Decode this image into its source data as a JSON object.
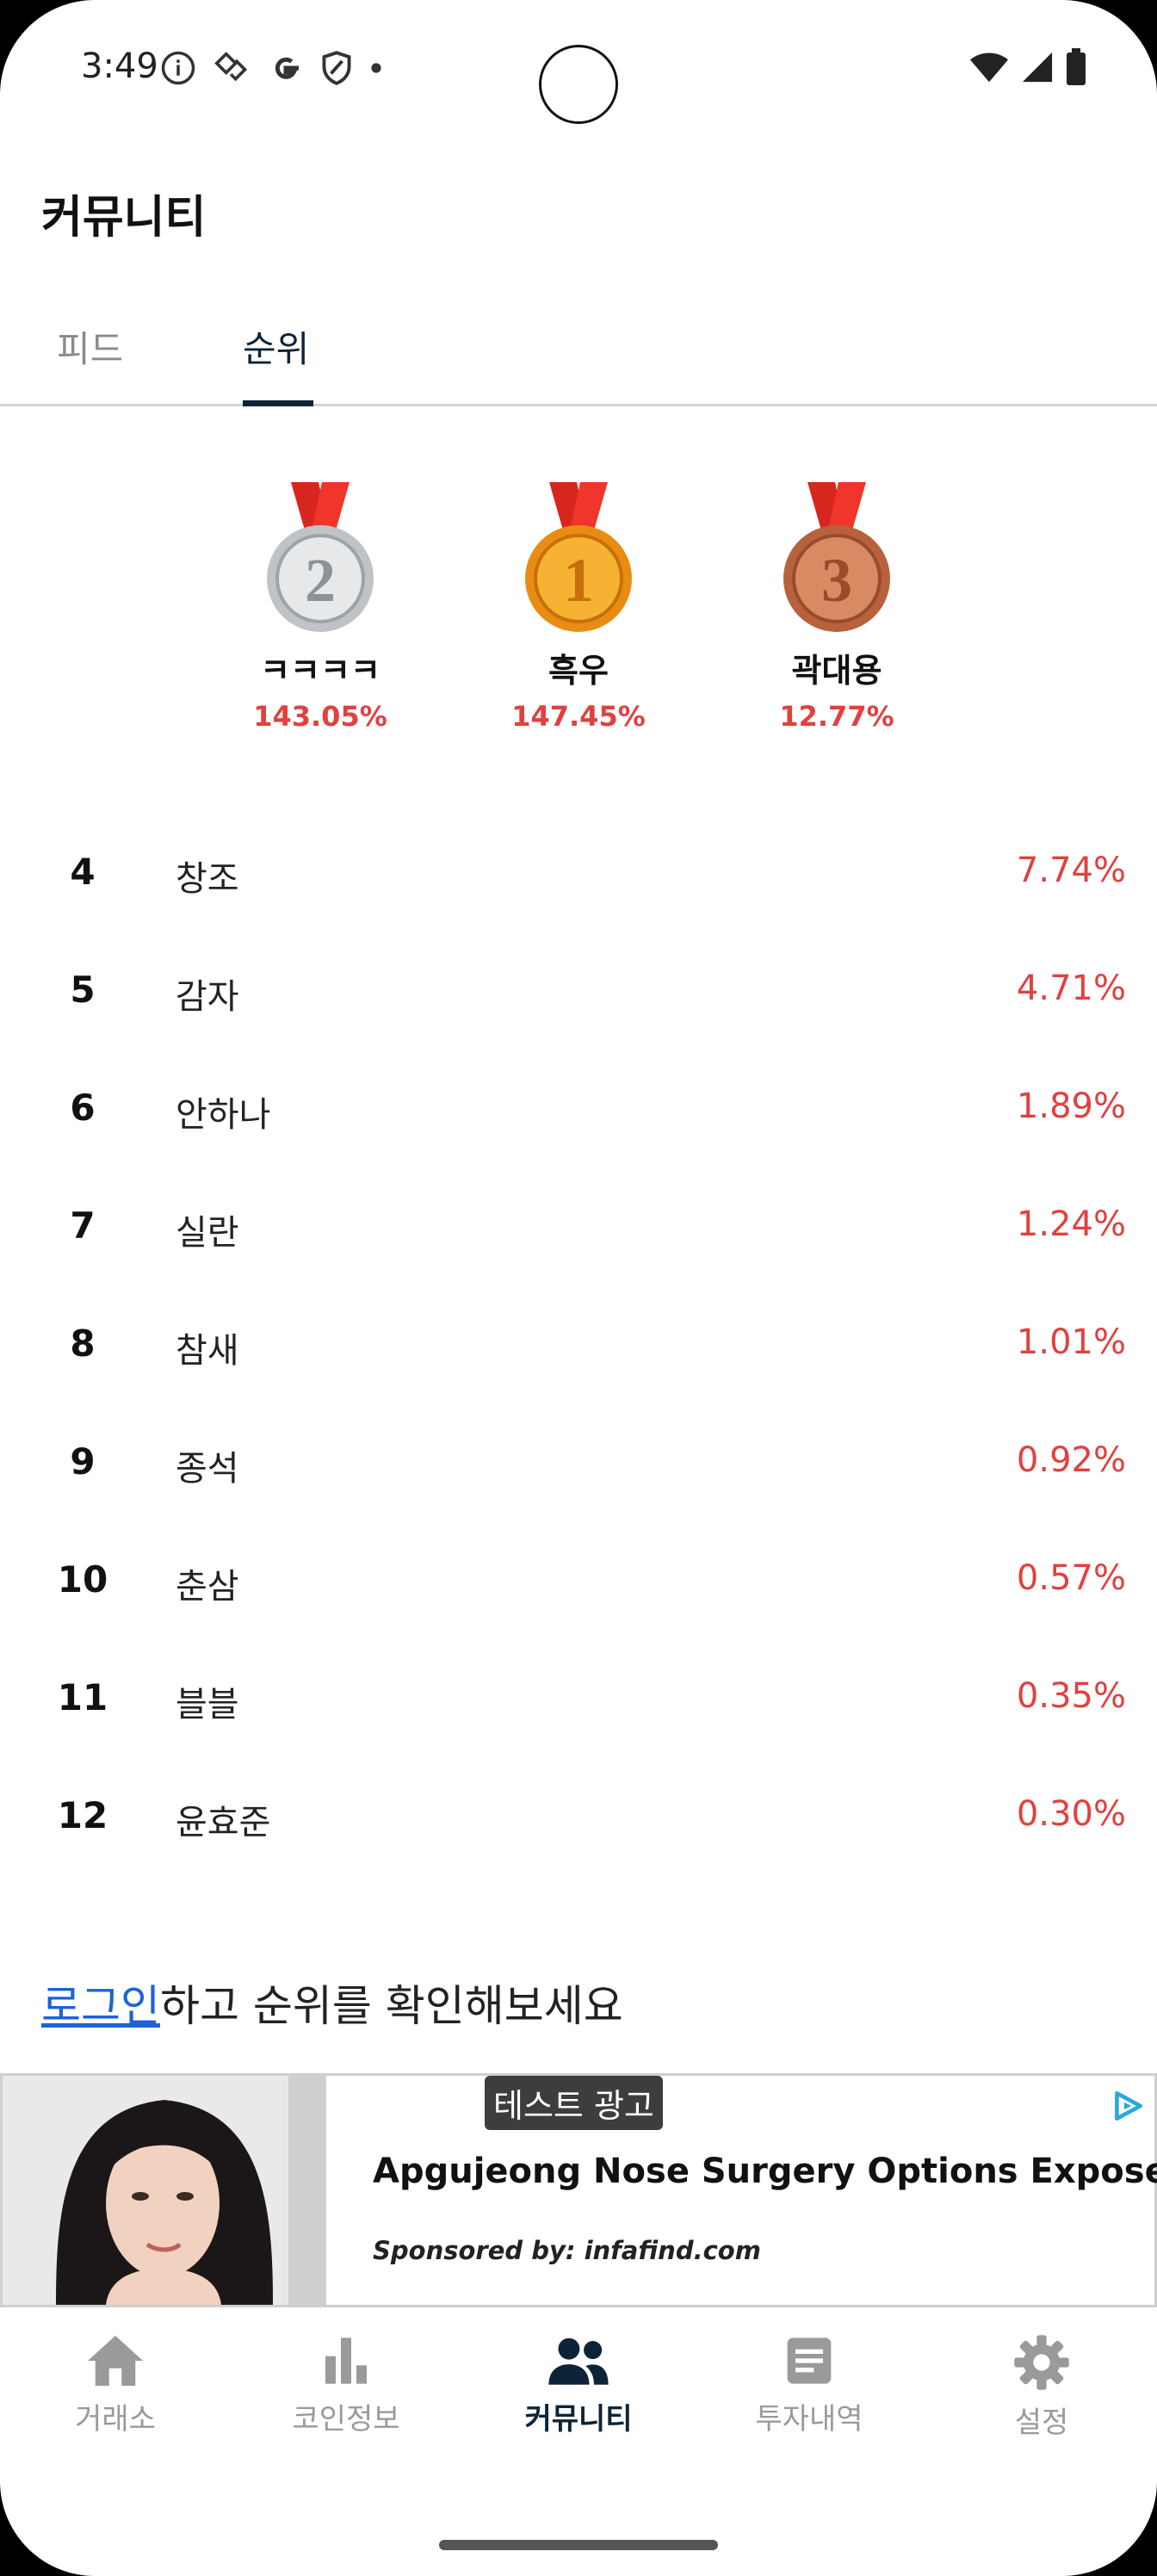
{
  "status_bar": {
    "time": "3:49",
    "left_icons": [
      "info-icon",
      "diamond-icon",
      "google-icon",
      "shield-icon",
      "dot-icon"
    ],
    "right_icons": [
      "wifi-icon",
      "signal-icon",
      "battery-icon"
    ]
  },
  "header": {
    "title": "커뮤니티"
  },
  "tabs": [
    {
      "label": "피드",
      "active": false
    },
    {
      "label": "순위",
      "active": true
    }
  ],
  "podium": [
    {
      "rank": "2",
      "name": "ㅋㅋㅋㅋ",
      "percent": "143.05%",
      "medal": "silver-medal-icon"
    },
    {
      "rank": "1",
      "name": "흑우",
      "percent": "147.45%",
      "medal": "gold-medal-icon"
    },
    {
      "rank": "3",
      "name": "곽대용",
      "percent": "12.77%",
      "medal": "bronze-medal-icon"
    }
  ],
  "ranking": [
    {
      "rank": "4",
      "name": "창조",
      "percent": "7.74%"
    },
    {
      "rank": "5",
      "name": "감자",
      "percent": "4.71%"
    },
    {
      "rank": "6",
      "name": "안하나",
      "percent": "1.89%"
    },
    {
      "rank": "7",
      "name": "실란",
      "percent": "1.24%"
    },
    {
      "rank": "8",
      "name": "참새",
      "percent": "1.01%"
    },
    {
      "rank": "9",
      "name": "종석",
      "percent": "0.92%"
    },
    {
      "rank": "10",
      "name": "춘삼",
      "percent": "0.57%"
    },
    {
      "rank": "11",
      "name": "블블",
      "percent": "0.35%"
    },
    {
      "rank": "12",
      "name": "윤효준",
      "percent": "0.30%"
    }
  ],
  "login_prompt": {
    "link": "로그인",
    "rest": "하고 순위를 확인해보세요"
  },
  "ad": {
    "badge": "테스트 광고",
    "title": "Apgujeong Nose Surgery Options Exposed",
    "sponsor": "Sponsored by: infafind.com"
  },
  "bottom_nav": [
    {
      "label": "거래소",
      "icon": "home-icon",
      "active": false
    },
    {
      "label": "코인정보",
      "icon": "bar-chart-icon",
      "active": false
    },
    {
      "label": "커뮤니티",
      "icon": "people-icon",
      "active": true
    },
    {
      "label": "투자내역",
      "icon": "document-icon",
      "active": false
    },
    {
      "label": "설정",
      "icon": "gear-icon",
      "active": false
    }
  ],
  "colors": {
    "accent_dark": "#0d2438",
    "percent_red": "#e0413f",
    "link_blue": "#1a63d8",
    "inactive_gray": "#9a9a9a"
  }
}
